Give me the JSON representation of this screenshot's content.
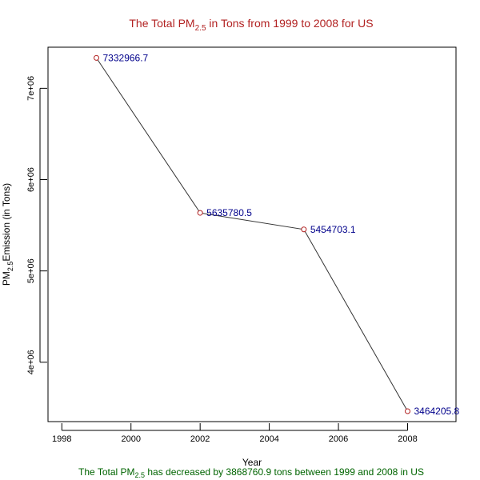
{
  "chart_data": {
    "type": "line",
    "title_main": "The Total  PM",
    "title_sub": "2.5",
    "title_rest": " in Tons from 1999 to 2008 for  US",
    "xlabel": "Year",
    "ylabel_main": "PM",
    "ylabel_sub": "2.5",
    "ylabel_rest": "Emission (in Tons)",
    "footnote_main": "The Total  PM",
    "footnote_sub": "2.5",
    "footnote_rest": " has decreased by  3868760.9 tons between 1999 and 2008 in US",
    "x": [
      1999,
      2002,
      2005,
      2008
    ],
    "y": [
      7332966.7,
      5635780.5,
      5454703.1,
      3464205.8
    ],
    "point_labels": [
      "7332966.7",
      "5635780.5",
      "5454703.1",
      "3464205.8"
    ],
    "xlim": [
      1997.6,
      2009.4
    ],
    "ylim": [
      3350000,
      7450000
    ],
    "xticks": [
      1998,
      2000,
      2002,
      2004,
      2006,
      2008
    ],
    "xtick_labels": [
      "1998",
      "2000",
      "2002",
      "2004",
      "2006",
      "2008"
    ],
    "yticks": [
      4000000,
      5000000,
      6000000,
      7000000
    ],
    "ytick_labels": [
      "4e+06",
      "5e+06",
      "6e+06",
      "7e+06"
    ],
    "grid": false,
    "colors": {
      "title": "#b22222",
      "line": "#333333",
      "marker": "#b22222",
      "data_label": "#00008b",
      "footnote": "#006400"
    }
  }
}
